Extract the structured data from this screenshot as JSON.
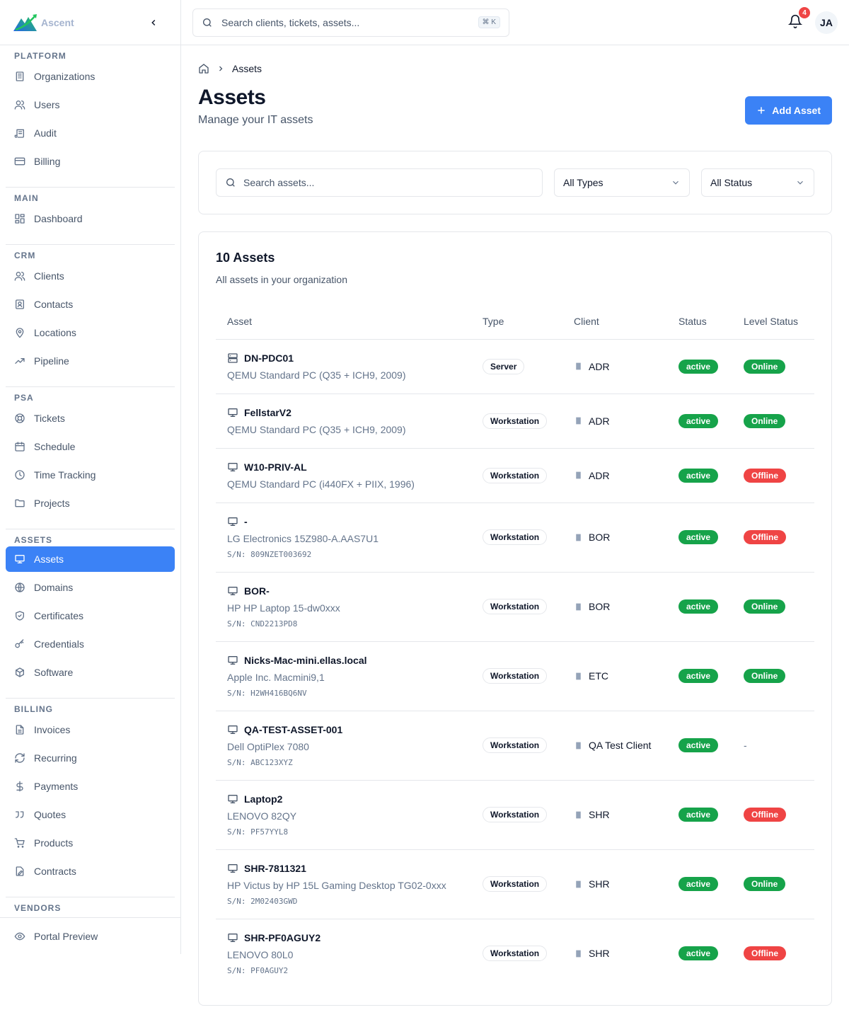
{
  "brand": {
    "name": "Ascent"
  },
  "colors": {
    "accent": "#3b82f6",
    "active": "#16a34a",
    "online": "#16a34a",
    "offline": "#ef4444"
  },
  "sidebar": {
    "sections": [
      {
        "label": "PLATFORM",
        "items": [
          {
            "label": "Organizations",
            "icon": "building"
          },
          {
            "label": "Users",
            "icon": "users"
          },
          {
            "label": "Audit",
            "icon": "scroll"
          },
          {
            "label": "Billing",
            "icon": "credit-card"
          }
        ]
      },
      {
        "label": "MAIN",
        "items": [
          {
            "label": "Dashboard",
            "icon": "grid"
          }
        ]
      },
      {
        "label": "CRM",
        "items": [
          {
            "label": "Clients",
            "icon": "users"
          },
          {
            "label": "Contacts",
            "icon": "contact"
          },
          {
            "label": "Locations",
            "icon": "map-pin"
          },
          {
            "label": "Pipeline",
            "icon": "trend"
          }
        ]
      },
      {
        "label": "PSA",
        "items": [
          {
            "label": "Tickets",
            "icon": "lifebuoy"
          },
          {
            "label": "Schedule",
            "icon": "calendar"
          },
          {
            "label": "Time Tracking",
            "icon": "clock"
          },
          {
            "label": "Projects",
            "icon": "folder"
          }
        ]
      },
      {
        "label": "ASSETS",
        "items": [
          {
            "label": "Assets",
            "icon": "monitor",
            "active": true
          },
          {
            "label": "Domains",
            "icon": "globe"
          },
          {
            "label": "Certificates",
            "icon": "shield"
          },
          {
            "label": "Credentials",
            "icon": "key"
          },
          {
            "label": "Software",
            "icon": "package"
          }
        ]
      },
      {
        "label": "BILLING",
        "items": [
          {
            "label": "Invoices",
            "icon": "file"
          },
          {
            "label": "Recurring",
            "icon": "refresh"
          },
          {
            "label": "Payments",
            "icon": "dollar"
          },
          {
            "label": "Quotes",
            "icon": "quote"
          },
          {
            "label": "Products",
            "icon": "cart"
          },
          {
            "label": "Contracts",
            "icon": "file-sign"
          }
        ]
      },
      {
        "label": "VENDORS",
        "items": []
      }
    ],
    "bottom": {
      "label": "Portal Preview",
      "icon": "eye"
    }
  },
  "topbar": {
    "search_placeholder": "Search clients, tickets, assets...",
    "shortcut": "⌘ K",
    "notifications": "4",
    "avatar": "JA"
  },
  "breadcrumb": {
    "current": "Assets"
  },
  "page": {
    "title": "Assets",
    "subtitle": "Manage your IT assets",
    "add_button": "Add Asset"
  },
  "filters": {
    "search_placeholder": "Search assets...",
    "type": "All Types",
    "status": "All Status"
  },
  "table": {
    "title": "10 Assets",
    "subtitle": "All assets in your organization",
    "columns": [
      "Asset",
      "Type",
      "Client",
      "Status",
      "Level Status"
    ],
    "rows": [
      {
        "name": "DN-PDC01",
        "icon": "server",
        "model": "QEMU Standard PC (Q35 + ICH9, 2009)",
        "sn": "",
        "type": "Server",
        "client": "ADR",
        "status": "active",
        "level": "Online"
      },
      {
        "name": "FellstarV2",
        "icon": "monitor",
        "model": "QEMU Standard PC (Q35 + ICH9, 2009)",
        "sn": "",
        "type": "Workstation",
        "client": "ADR",
        "status": "active",
        "level": "Online"
      },
      {
        "name": "W10-PRIV-AL",
        "icon": "monitor",
        "model": "QEMU Standard PC (i440FX + PIIX, 1996)",
        "sn": "",
        "type": "Workstation",
        "client": "ADR",
        "status": "active",
        "level": "Offline"
      },
      {
        "name": "-",
        "icon": "monitor",
        "model": "LG Electronics 15Z980-A.AAS7U1",
        "sn": "S/N: 809NZET003692",
        "type": "Workstation",
        "client": "BOR",
        "status": "active",
        "level": "Offline"
      },
      {
        "name": "BOR-",
        "icon": "monitor",
        "model": "HP HP Laptop 15-dw0xxx",
        "sn": "S/N: CND2213PD8",
        "type": "Workstation",
        "client": "BOR",
        "status": "active",
        "level": "Online"
      },
      {
        "name": "Nicks-Mac-mini.ellas.local",
        "icon": "monitor",
        "model": "Apple Inc. Macmini9,1",
        "sn": "S/N: H2WH416BQ6NV",
        "type": "Workstation",
        "client": "ETC",
        "status": "active",
        "level": "Online"
      },
      {
        "name": "QA-TEST-ASSET-001",
        "icon": "monitor",
        "model": "Dell OptiPlex 7080",
        "sn": "S/N: ABC123XYZ",
        "type": "Workstation",
        "client": "QA Test Client",
        "status": "active",
        "level": "-"
      },
      {
        "name": "Laptop2",
        "icon": "monitor",
        "model": "LENOVO 82QY",
        "sn": "S/N: PF57YYL8",
        "type": "Workstation",
        "client": "SHR",
        "status": "active",
        "level": "Offline"
      },
      {
        "name": "SHR-7811321",
        "icon": "monitor",
        "model": "HP Victus by HP 15L Gaming Desktop TG02-0xxx",
        "sn": "S/N: 2M02403GWD",
        "type": "Workstation",
        "client": "SHR",
        "status": "active",
        "level": "Online"
      },
      {
        "name": "SHR-PF0AGUY2",
        "icon": "monitor",
        "model": "LENOVO 80L0",
        "sn": "S/N: PF0AGUY2",
        "type": "Workstation",
        "client": "SHR",
        "status": "active",
        "level": "Offline"
      }
    ]
  }
}
